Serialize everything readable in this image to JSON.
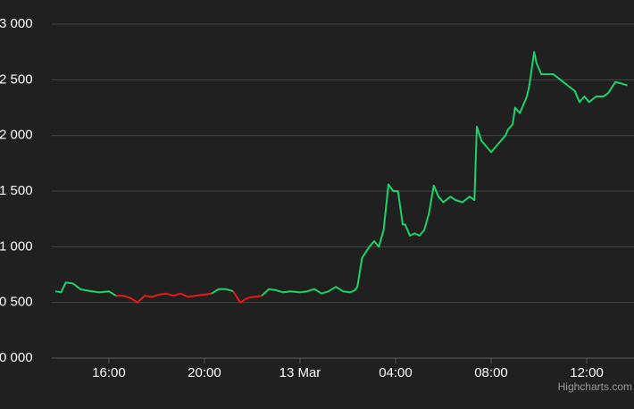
{
  "chart_data": {
    "type": "line",
    "credits": "Highcharts.com",
    "x": [
      13.76,
      14.0,
      14.2,
      14.5,
      14.8,
      15.0,
      15.3,
      15.6,
      16.0,
      16.3,
      16.6,
      16.9,
      17.2,
      17.5,
      17.8,
      18.1,
      18.4,
      18.7,
      19.0,
      19.3,
      19.6,
      20.0,
      20.3,
      20.6,
      20.9,
      21.2,
      21.5,
      21.8,
      22.1,
      22.4,
      22.7,
      23.0,
      23.3,
      23.6,
      24.0,
      24.3,
      24.6,
      24.9,
      25.2,
      25.5,
      25.8,
      26.1,
      26.3,
      26.4,
      26.6,
      26.9,
      27.1,
      27.3,
      27.5,
      27.7,
      27.9,
      28.1,
      28.3,
      28.4,
      28.6,
      28.8,
      29.0,
      29.2,
      29.4,
      29.6,
      29.8,
      30.0,
      30.3,
      30.5,
      30.8,
      31.1,
      31.3,
      31.4,
      31.6,
      31.8,
      32.0,
      32.2,
      32.4,
      32.6,
      32.7,
      32.9,
      33.0,
      33.2,
      33.3,
      33.5,
      33.6,
      33.8,
      33.9,
      34.1,
      34.3,
      34.6,
      34.9,
      35.2,
      35.5,
      35.7,
      35.9,
      36.1,
      36.4,
      36.7,
      36.9,
      37.2,
      37.4,
      37.7
    ],
    "values": [
      600,
      590,
      680,
      670,
      620,
      610,
      600,
      590,
      600,
      560,
      560,
      540,
      500,
      560,
      550,
      570,
      580,
      560,
      580,
      550,
      560,
      570,
      580,
      620,
      620,
      600,
      500,
      540,
      550,
      560,
      620,
      610,
      590,
      600,
      590,
      600,
      620,
      580,
      600,
      640,
      600,
      590,
      610,
      640,
      900,
      1000,
      1050,
      1000,
      1150,
      1560,
      1500,
      1500,
      1200,
      1200,
      1100,
      1120,
      1100,
      1150,
      1300,
      1550,
      1450,
      1400,
      1450,
      1420,
      1400,
      1450,
      1420,
      2080,
      1950,
      1900,
      1850,
      1900,
      1950,
      2000,
      2050,
      2100,
      2250,
      2200,
      2250,
      2350,
      2450,
      2750,
      2650,
      2550,
      2550,
      2550,
      2500,
      2450,
      2400,
      2300,
      2350,
      2300,
      2350,
      2350,
      2380,
      2480,
      2470,
      2450
    ],
    "color": "#19d466",
    "negative_color": "#f01616",
    "threshold": 580,
    "xlim": [
      13.76,
      37.98
    ],
    "ylim": [
      0,
      3000
    ],
    "xticks": [
      {
        "value": 16,
        "label": "16:00"
      },
      {
        "value": 20,
        "label": "20:00"
      },
      {
        "value": 24,
        "label": "13 Mar"
      },
      {
        "value": 28,
        "label": "04:00"
      },
      {
        "value": 32,
        "label": "08:00"
      },
      {
        "value": 36,
        "label": "12:00"
      }
    ],
    "yticks": [
      {
        "value": 0,
        "label": "0 000"
      },
      {
        "value": 500,
        "label": "0 500"
      },
      {
        "value": 1000,
        "label": "1 000"
      },
      {
        "value": 1500,
        "label": "1 500"
      },
      {
        "value": 2000,
        "label": "2 000"
      },
      {
        "value": 2500,
        "label": "2 500"
      },
      {
        "value": 3000,
        "label": "3 000"
      }
    ],
    "grid": true
  }
}
